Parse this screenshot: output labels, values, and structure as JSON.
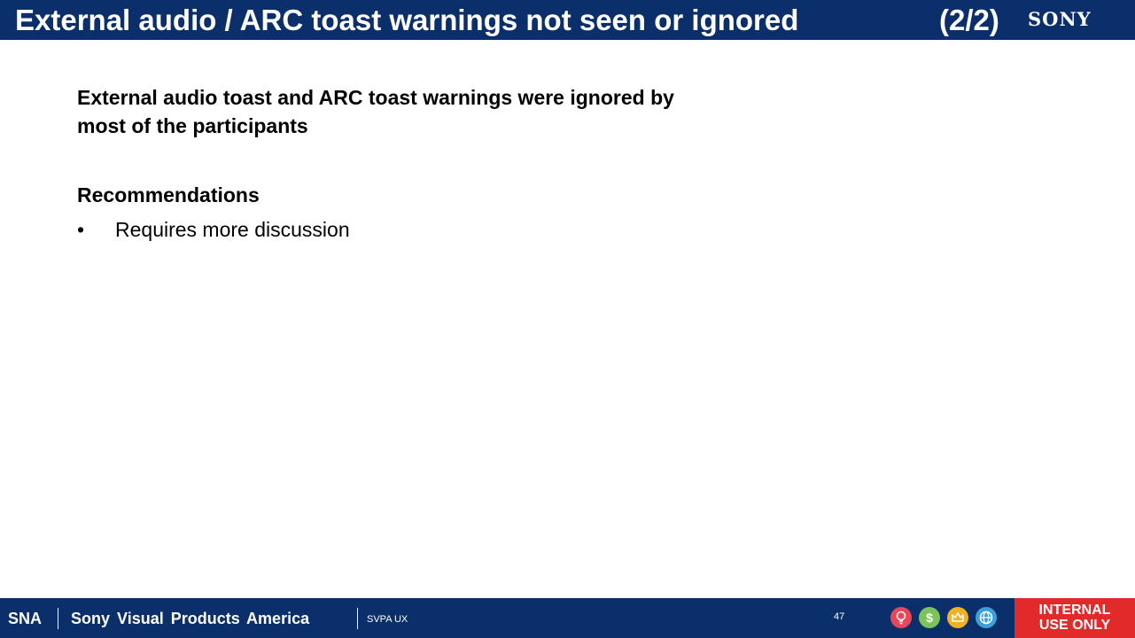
{
  "header": {
    "title": "External audio / ARC toast warnings not seen or ignored",
    "page_indicator": "(2/2)",
    "logo": "SONY"
  },
  "content": {
    "summary": "External audio toast and ARC toast warnings were ignored by most of the participants",
    "recommendations_heading": "Recommendations",
    "bullet_symbol": "•",
    "bullets": [
      "Requires more discussion"
    ]
  },
  "footer": {
    "org": "SNA",
    "company": "Sony Visual Products America",
    "dept": "SVPA UX",
    "page_number": "47",
    "icons": [
      "lightbulb-icon",
      "dollar-icon",
      "crown-icon",
      "globe-icon"
    ],
    "badge_line1": "INTERNAL",
    "badge_line2": "USE ONLY"
  },
  "colors": {
    "brand_navy": "#0b2f6a",
    "badge_red": "#e32a2a"
  }
}
